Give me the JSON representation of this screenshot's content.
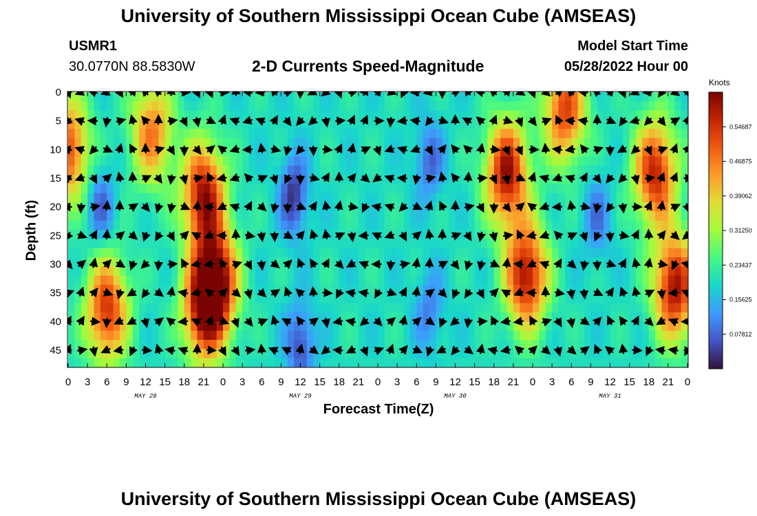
{
  "header": {
    "title": "University of Southern Mississippi Ocean Cube (AMSEAS)",
    "station": "USMR1",
    "location": "30.0770N  88.5830W",
    "subtitle": "2-D Currents Speed-Magnitude",
    "model_start_label": "Model Start Time",
    "model_start_value": "05/28/2022 Hour 00"
  },
  "footer": {
    "title": "University of Southern Mississippi Ocean Cube (AMSEAS)"
  },
  "colors": {
    "colormap": [
      "#30123b",
      "#4454c4",
      "#3e9bfe",
      "#18d6cb",
      "#46f884",
      "#a2fc3c",
      "#e1dd37",
      "#fe9b2d",
      "#f05b12",
      "#c42503",
      "#7a0403"
    ],
    "arrow": "#000000"
  },
  "chart_data": {
    "type": "heatmap",
    "title": "2-D Currents Speed-Magnitude",
    "xlabel": "Forecast Time(Z)",
    "ylabel": "Depth (ft)",
    "x_tick_labels": [
      "0",
      "3",
      "6",
      "9",
      "12",
      "15",
      "18",
      "21",
      "0",
      "3",
      "6",
      "9",
      "12",
      "15",
      "18",
      "21",
      "0",
      "3",
      "6",
      "9",
      "12",
      "15",
      "18",
      "21",
      "0",
      "3",
      "6",
      "9",
      "12",
      "15",
      "18",
      "21",
      "0"
    ],
    "day_labels": [
      {
        "label": "MAY 28",
        "hour": 12
      },
      {
        "label": "MAY 29",
        "hour": 36
      },
      {
        "label": "MAY 30",
        "hour": 60
      },
      {
        "label": "MAY 31",
        "hour": 84
      }
    ],
    "x_range_hours": [
      0,
      96
    ],
    "x_tick_step_hours": 3,
    "y_ticks": [
      0,
      5,
      10,
      15,
      20,
      25,
      30,
      35,
      40,
      45
    ],
    "y_range_ft": [
      0,
      48
    ],
    "y_inverted": true,
    "colorbar": {
      "title": "Knots",
      "range": [
        0,
        0.625
      ],
      "tick_values": [
        0.078125,
        0.15625,
        0.234375,
        0.3125,
        0.390625,
        0.46875,
        0.546875
      ],
      "tick_labels": [
        "0.07812",
        "0.15625",
        "0.23437",
        "0.31250",
        "0.39062",
        "0.46875",
        "0.54687"
      ]
    },
    "grid_resolution": {
      "hour_step": 1,
      "depth_step_ft": 1.6
    },
    "high_speed_features": [
      {
        "hour": 0,
        "depth": 10,
        "speed": 0.52
      },
      {
        "hour": 13,
        "depth": 7,
        "speed": 0.47
      },
      {
        "hour": 6,
        "depth": 38,
        "speed": 0.55
      },
      {
        "hour": 21,
        "depth": 38,
        "speed": 0.56
      },
      {
        "hour": 21,
        "depth": 18,
        "speed": 0.6
      },
      {
        "hour": 23,
        "depth": 33,
        "speed": 0.6
      },
      {
        "hour": 68,
        "depth": 14,
        "speed": 0.6
      },
      {
        "hour": 71,
        "depth": 32,
        "speed": 0.6
      },
      {
        "hour": 77,
        "depth": 3,
        "speed": 0.53
      },
      {
        "hour": 91,
        "depth": 14,
        "speed": 0.57
      },
      {
        "hour": 94,
        "depth": 34,
        "speed": 0.6
      }
    ],
    "low_speed_features": [
      {
        "hour": 5,
        "depth": 20,
        "speed": 0.08
      },
      {
        "hour": 35,
        "depth": 18,
        "speed": 0.03
      },
      {
        "hour": 36,
        "depth": 44,
        "speed": 0.05
      },
      {
        "hour": 56,
        "depth": 12,
        "speed": 0.08
      },
      {
        "hour": 56,
        "depth": 38,
        "speed": 0.1
      },
      {
        "hour": 82,
        "depth": 22,
        "speed": 0.1
      }
    ],
    "background_speed": 0.2,
    "arrow_grid": {
      "hour_step": 2,
      "depths": [
        0,
        5,
        10,
        15,
        20,
        25,
        30,
        35,
        40,
        45
      ]
    }
  }
}
